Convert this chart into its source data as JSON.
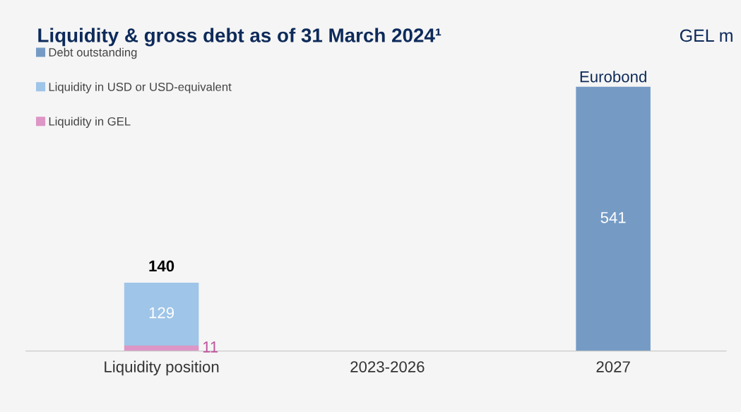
{
  "chart_data": {
    "type": "bar",
    "title": "Liquidity & gross debt as of 31 March 2024¹",
    "stacked": true,
    "categories": [
      "Liquidity position",
      "2023-2026",
      "2027"
    ],
    "series": [
      {
        "name": "Liquidity in GEL",
        "color": "#dd96c6",
        "values": [
          11,
          null,
          null
        ]
      },
      {
        "name": "Liquidity in USD or USD-equivalent",
        "color": "#9fc5e8",
        "values": [
          129,
          null,
          null
        ]
      },
      {
        "name": "Debt outstanding",
        "color": "#759bc5",
        "values": [
          null,
          null,
          541
        ]
      }
    ],
    "data_labels": true,
    "totals": [
      "140",
      null,
      null
    ],
    "annotations": [
      {
        "text": "Eurobond",
        "x": "2027",
        "y": 541
      },
      "GEL m"
    ],
    "legend": "top left",
    "grid": false
  }
}
